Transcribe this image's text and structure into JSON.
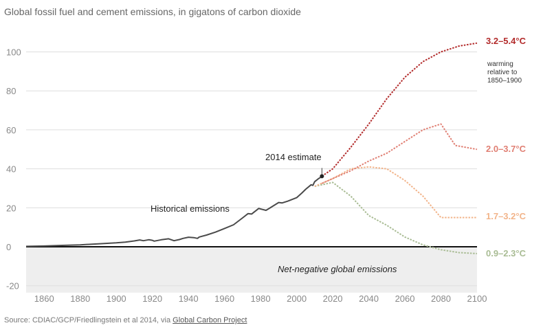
{
  "title": "Global fossil fuel and cement emissions, in gigatons of carbon dioxide",
  "source": {
    "prefix": "Source: CDIAC/GCP/Friedlingstein et al 2014, via ",
    "link": "Global Carbon Project"
  },
  "annotations": {
    "historical": "Historical emissions",
    "estimate": "2014 estimate",
    "negative": "Net-negative global emissions",
    "warming_note": [
      "warming",
      "relative to",
      "1850–1900"
    ]
  },
  "colors": {
    "historical": "#4a4a4a",
    "s1": "#b22a2a",
    "s2": "#e07f73",
    "s3": "#f2b48a",
    "s4": "#a9bc94",
    "negative_band": "#eeeeee",
    "zero_line": "#111111",
    "grid": "#dddddd"
  },
  "chart_data": {
    "type": "line",
    "title": "Global fossil fuel and cement emissions, in gigatons of carbon dioxide",
    "xlim": [
      1850,
      2100
    ],
    "ylim": [
      -20,
      105
    ],
    "x_ticks": [
      1860,
      1880,
      1900,
      1920,
      1940,
      1960,
      1980,
      2000,
      2020,
      2040,
      2060,
      2080,
      2100
    ],
    "y_ticks": [
      -20,
      0,
      20,
      40,
      60,
      80,
      100
    ],
    "grid": true,
    "series": [
      {
        "name": "Historical emissions",
        "style": "solid",
        "x": [
          1850,
          1860,
          1870,
          1880,
          1890,
          1900,
          1905,
          1910,
          1913,
          1915,
          1918,
          1920,
          1921,
          1925,
          1929,
          1932,
          1935,
          1937,
          1940,
          1943,
          1945,
          1946,
          1950,
          1955,
          1960,
          1965,
          1970,
          1973,
          1975,
          1979,
          1980,
          1983,
          1985,
          1990,
          1992,
          1995,
          2000,
          2003,
          2005,
          2008,
          2009,
          2010,
          2012,
          2013,
          2014
        ],
        "y": [
          0.2,
          0.4,
          0.7,
          1.0,
          1.5,
          2.0,
          2.4,
          3.0,
          3.5,
          3.1,
          3.6,
          3.3,
          2.9,
          3.6,
          4.1,
          3.1,
          3.7,
          4.3,
          4.9,
          4.7,
          4.3,
          5.0,
          6.0,
          7.5,
          9.4,
          11.3,
          14.8,
          17.0,
          16.8,
          19.7,
          19.4,
          18.7,
          19.8,
          22.7,
          22.5,
          23.4,
          25.2,
          27.7,
          29.5,
          31.8,
          31.5,
          33.4,
          34.9,
          35.5,
          36.2
        ]
      },
      {
        "name": "3.2–5.4°C",
        "style": "dashed",
        "x": [
          2014,
          2020,
          2030,
          2040,
          2050,
          2060,
          2070,
          2080,
          2090,
          2100
        ],
        "y": [
          36.2,
          40,
          51,
          63,
          76,
          87,
          95,
          100,
          103,
          104.5
        ]
      },
      {
        "name": "2.0–3.7°C",
        "style": "dashed",
        "x": [
          2014,
          2020,
          2030,
          2040,
          2050,
          2060,
          2070,
          2080,
          2088,
          2100
        ],
        "y": [
          32.5,
          35,
          39,
          44,
          48,
          54,
          60,
          63,
          52,
          50
        ]
      },
      {
        "name": "1.7–3.2°C",
        "style": "dashed",
        "x": [
          2010,
          2020,
          2030,
          2040,
          2050,
          2060,
          2070,
          2080,
          2090,
          2100
        ],
        "y": [
          31,
          35,
          40,
          41,
          40,
          34,
          26,
          15,
          15,
          15
        ]
      },
      {
        "name": "0.9–2.3°C",
        "style": "dashed",
        "x": [
          2010,
          2020,
          2030,
          2040,
          2050,
          2060,
          2070,
          2080,
          2090,
          2100
        ],
        "y": [
          31,
          33,
          26,
          16,
          11,
          5,
          1,
          -1.5,
          -3,
          -3.5
        ]
      }
    ]
  }
}
